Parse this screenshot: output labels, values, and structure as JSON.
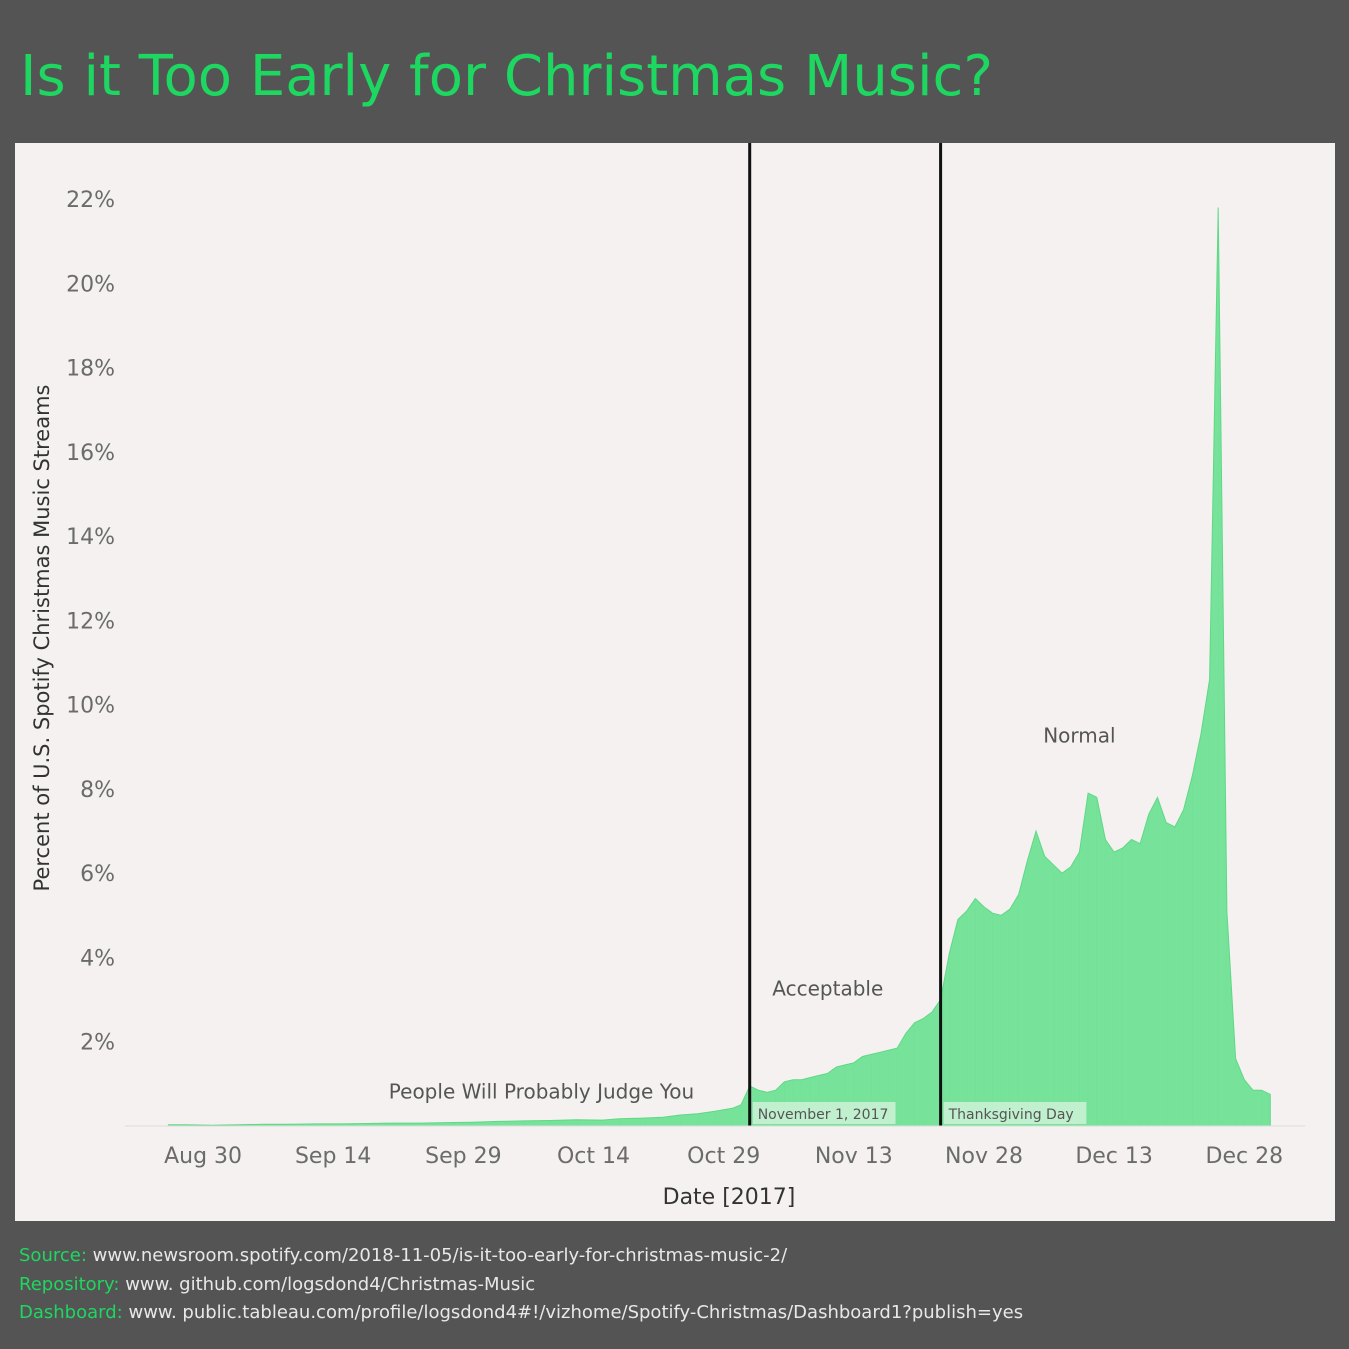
{
  "title": "Is it Too Early for Christmas Music?",
  "colors": {
    "accent": "#1ed760",
    "area": "#77e39a",
    "background": "#545454",
    "panel": "#f4f1f0"
  },
  "chart_data": {
    "type": "area",
    "xlabel": "Date [2017]",
    "ylabel": "Percent of U.S. Spotify Christmas Music Streams",
    "x_range": [
      "2017-08-21",
      "2018-01-04"
    ],
    "ylim": [
      0,
      22.5
    ],
    "y_ticks": [
      "2%",
      "4%",
      "6%",
      "8%",
      "10%",
      "12%",
      "14%",
      "16%",
      "18%",
      "20%",
      "22%"
    ],
    "y_tick_values": [
      2,
      4,
      6,
      8,
      10,
      12,
      14,
      16,
      18,
      20,
      22
    ],
    "x_ticks": [
      {
        "date": "2017-08-30",
        "label": "Aug 30"
      },
      {
        "date": "2017-09-14",
        "label": "Sep 14"
      },
      {
        "date": "2017-09-29",
        "label": "Sep 29"
      },
      {
        "date": "2017-10-14",
        "label": "Oct 14"
      },
      {
        "date": "2017-10-29",
        "label": "Oct 29"
      },
      {
        "date": "2017-11-13",
        "label": "Nov 13"
      },
      {
        "date": "2017-11-28",
        "label": "Nov 28"
      },
      {
        "date": "2017-12-13",
        "label": "Dec 13"
      },
      {
        "date": "2017-12-28",
        "label": "Dec 28"
      }
    ],
    "series": [
      {
        "points": [
          [
            "2017-08-26",
            0.03
          ],
          [
            "2017-08-28",
            0.03
          ],
          [
            "2017-08-31",
            0.02
          ],
          [
            "2017-09-03",
            0.03
          ],
          [
            "2017-09-06",
            0.04
          ],
          [
            "2017-09-09",
            0.04
          ],
          [
            "2017-09-12",
            0.05
          ],
          [
            "2017-09-15",
            0.05
          ],
          [
            "2017-09-18",
            0.06
          ],
          [
            "2017-09-21",
            0.07
          ],
          [
            "2017-09-24",
            0.07
          ],
          [
            "2017-09-27",
            0.08
          ],
          [
            "2017-09-30",
            0.09
          ],
          [
            "2017-10-03",
            0.11
          ],
          [
            "2017-10-06",
            0.12
          ],
          [
            "2017-10-09",
            0.13
          ],
          [
            "2017-10-12",
            0.15
          ],
          [
            "2017-10-15",
            0.14
          ],
          [
            "2017-10-17",
            0.17
          ],
          [
            "2017-10-20",
            0.19
          ],
          [
            "2017-10-22",
            0.21
          ],
          [
            "2017-10-24",
            0.26
          ],
          [
            "2017-10-26",
            0.29
          ],
          [
            "2017-10-28",
            0.35
          ],
          [
            "2017-10-30",
            0.42
          ],
          [
            "2017-10-31",
            0.5
          ],
          [
            "2017-11-01",
            0.95
          ],
          [
            "2017-11-02",
            0.85
          ],
          [
            "2017-11-03",
            0.8
          ],
          [
            "2017-11-04",
            0.85
          ],
          [
            "2017-11-05",
            1.05
          ],
          [
            "2017-11-06",
            1.1
          ],
          [
            "2017-11-07",
            1.1
          ],
          [
            "2017-11-08",
            1.15
          ],
          [
            "2017-11-09",
            1.2
          ],
          [
            "2017-11-10",
            1.25
          ],
          [
            "2017-11-11",
            1.4
          ],
          [
            "2017-11-12",
            1.45
          ],
          [
            "2017-11-13",
            1.5
          ],
          [
            "2017-11-14",
            1.65
          ],
          [
            "2017-11-15",
            1.7
          ],
          [
            "2017-11-16",
            1.75
          ],
          [
            "2017-11-17",
            1.8
          ],
          [
            "2017-11-18",
            1.85
          ],
          [
            "2017-11-19",
            2.2
          ],
          [
            "2017-11-20",
            2.45
          ],
          [
            "2017-11-21",
            2.55
          ],
          [
            "2017-11-22",
            2.7
          ],
          [
            "2017-11-23",
            3.0
          ],
          [
            "2017-11-24",
            4.1
          ],
          [
            "2017-11-25",
            4.9
          ],
          [
            "2017-11-26",
            5.1
          ],
          [
            "2017-11-27",
            5.4
          ],
          [
            "2017-11-28",
            5.2
          ],
          [
            "2017-11-29",
            5.05
          ],
          [
            "2017-11-30",
            5.0
          ],
          [
            "2017-12-01",
            5.15
          ],
          [
            "2017-12-02",
            5.5
          ],
          [
            "2017-12-03",
            6.3
          ],
          [
            "2017-12-04",
            7.0
          ],
          [
            "2017-12-05",
            6.4
          ],
          [
            "2017-12-06",
            6.2
          ],
          [
            "2017-12-07",
            6.0
          ],
          [
            "2017-12-08",
            6.15
          ],
          [
            "2017-12-09",
            6.5
          ],
          [
            "2017-12-10",
            7.9
          ],
          [
            "2017-12-11",
            7.8
          ],
          [
            "2017-12-12",
            6.8
          ],
          [
            "2017-12-13",
            6.5
          ],
          [
            "2017-12-14",
            6.6
          ],
          [
            "2017-12-15",
            6.8
          ],
          [
            "2017-12-16",
            6.7
          ],
          [
            "2017-12-17",
            7.4
          ],
          [
            "2017-12-18",
            7.8
          ],
          [
            "2017-12-19",
            7.2
          ],
          [
            "2017-12-20",
            7.1
          ],
          [
            "2017-12-21",
            7.5
          ],
          [
            "2017-12-22",
            8.3
          ],
          [
            "2017-12-23",
            9.3
          ],
          [
            "2017-12-24",
            10.6
          ],
          [
            "2017-12-25",
            21.8
          ],
          [
            "2017-12-26",
            5.1
          ],
          [
            "2017-12-27",
            1.6
          ],
          [
            "2017-12-28",
            1.1
          ],
          [
            "2017-12-29",
            0.85
          ],
          [
            "2017-12-30",
            0.85
          ],
          [
            "2017-12-31",
            0.75
          ]
        ]
      }
    ],
    "reference_lines": [
      {
        "date": "2017-11-01",
        "label": "November 1, 2017"
      },
      {
        "date": "2017-11-23",
        "label": "Thanksgiving Day"
      }
    ],
    "annotations": [
      {
        "text": "People Will Probably Judge You",
        "date": "2017-10-08",
        "y": 0.65
      },
      {
        "text": "Acceptable",
        "date": "2017-11-10",
        "y": 3.1
      },
      {
        "text": "Normal",
        "date": "2017-12-09",
        "y": 9.1
      }
    ]
  },
  "footer": {
    "source_label": "Source:",
    "source_value": "www.newsroom.spotify.com/2018-11-05/is-it-too-early-for-christmas-music-2/",
    "repository_label": "Repository:",
    "repository_value": "www. github.com/logsdond4/Christmas-Music",
    "dashboard_label": "Dashboard:",
    "dashboard_value": "www. public.tableau.com/profile/logsdond4#!/vizhome/Spotify-Christmas/Dashboard1?publish=yes"
  }
}
